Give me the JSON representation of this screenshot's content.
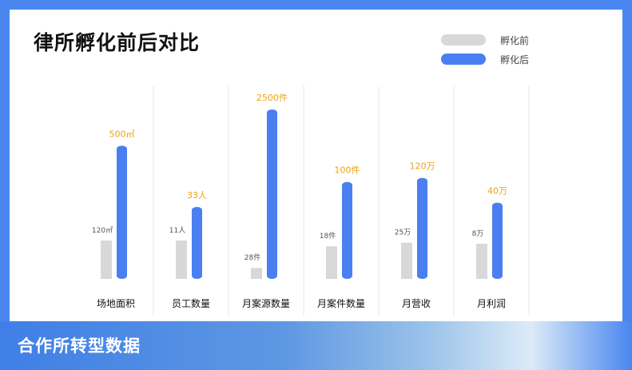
{
  "colors": {
    "before": "#d8d8d8",
    "after": "#4a7ff2",
    "label_after": "#f0a010",
    "label_before": "#555555",
    "divider": "#e6e6e6"
  },
  "footer": {
    "text": "合作所转型数据"
  },
  "chart_data": {
    "type": "bar",
    "title": "律所孵化前后对比",
    "legend": [
      "孵化前",
      "孵化后"
    ],
    "legend_position": "top-right",
    "categories": [
      "场地面积",
      "员工数量",
      "月案源数量",
      "月案件数量",
      "月营收",
      "月利润"
    ],
    "series": [
      {
        "name": "孵化前",
        "values": [
          120,
          11,
          28,
          18,
          25,
          8
        ],
        "labels": [
          "120㎡",
          "11人",
          "28件",
          "18件",
          "25万",
          "8万"
        ]
      },
      {
        "name": "孵化后",
        "values": [
          500,
          33,
          2500,
          100,
          120,
          40
        ],
        "labels": [
          "500㎡",
          "33人",
          "2500件",
          "100件",
          "120万",
          "40万"
        ]
      }
    ]
  }
}
